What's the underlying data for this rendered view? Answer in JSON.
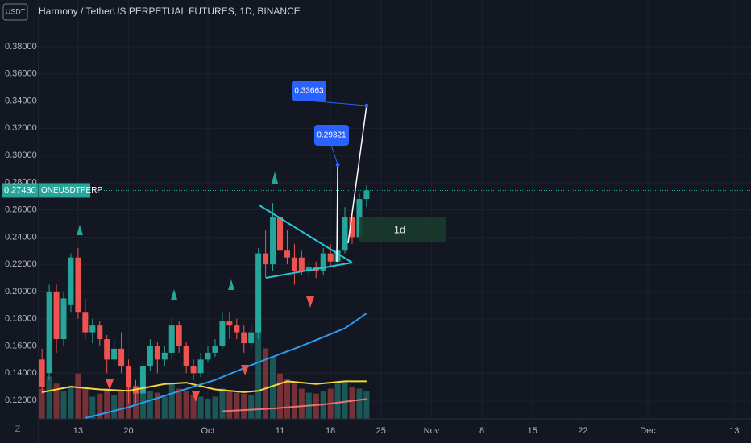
{
  "chart_data": {
    "type": "candlestick",
    "title": "Harmony / TetherUS PERPETUAL FUTURES, 1D, BINANCE",
    "currency": "USDT",
    "symbol": "ONEUSDTPERP",
    "interval_label": "1d",
    "up_color": "#26a69a",
    "down_color": "#ef5350",
    "x": [
      "Sep 8",
      "Sep 9",
      "Sep 10",
      "Sep 11",
      "Sep 12",
      "Sep 13",
      "Sep 14",
      "Sep 15",
      "Sep 16",
      "Sep 17",
      "Sep 18",
      "Sep 19",
      "Sep 20",
      "Sep 21",
      "Sep 22",
      "Sep 23",
      "Sep 24",
      "Sep 25",
      "Sep 26",
      "Sep 27",
      "Sep 28",
      "Sep 29",
      "Sep 30",
      "Oct 1",
      "Oct 2",
      "Oct 3",
      "Oct 4",
      "Oct 5",
      "Oct 6",
      "Oct 7",
      "Oct 8",
      "Oct 9",
      "Oct 10",
      "Oct 11",
      "Oct 12",
      "Oct 13",
      "Oct 14",
      "Oct 15",
      "Oct 16",
      "Oct 17",
      "Oct 18",
      "Oct 19",
      "Oct 20",
      "Oct 21",
      "Oct 22",
      "Oct 23"
    ],
    "open": [
      0.15,
      0.14,
      0.2,
      0.165,
      0.19,
      0.225,
      0.185,
      0.17,
      0.175,
      0.165,
      0.15,
      0.158,
      0.145,
      0.13,
      0.125,
      0.145,
      0.16,
      0.15,
      0.155,
      0.175,
      0.16,
      0.145,
      0.14,
      0.15,
      0.155,
      0.16,
      0.178,
      0.175,
      0.17,
      0.162,
      0.17,
      0.228,
      0.22,
      0.255,
      0.23,
      0.225,
      0.225,
      0.215,
      0.218,
      0.215,
      0.228,
      0.222,
      0.23,
      0.255,
      0.24,
      0.268
    ],
    "high": [
      0.158,
      0.205,
      0.205,
      0.2,
      0.228,
      0.232,
      0.195,
      0.18,
      0.178,
      0.168,
      0.165,
      0.17,
      0.15,
      0.135,
      0.15,
      0.165,
      0.163,
      0.16,
      0.18,
      0.178,
      0.163,
      0.15,
      0.155,
      0.16,
      0.165,
      0.185,
      0.185,
      0.18,
      0.175,
      0.175,
      0.232,
      0.245,
      0.265,
      0.26,
      0.245,
      0.235,
      0.23,
      0.222,
      0.222,
      0.232,
      0.235,
      0.235,
      0.262,
      0.26,
      0.272,
      0.278
    ],
    "low": [
      0.125,
      0.135,
      0.155,
      0.16,
      0.185,
      0.18,
      0.165,
      0.162,
      0.16,
      0.14,
      0.145,
      0.14,
      0.118,
      0.118,
      0.122,
      0.142,
      0.14,
      0.145,
      0.15,
      0.155,
      0.14,
      0.135,
      0.137,
      0.148,
      0.152,
      0.158,
      0.165,
      0.165,
      0.155,
      0.158,
      0.165,
      0.21,
      0.215,
      0.225,
      0.22,
      0.205,
      0.212,
      0.21,
      0.21,
      0.212,
      0.218,
      0.22,
      0.228,
      0.235,
      0.238,
      0.262
    ],
    "close": [
      0.13,
      0.2,
      0.165,
      0.195,
      0.225,
      0.185,
      0.17,
      0.175,
      0.165,
      0.15,
      0.158,
      0.145,
      0.13,
      0.125,
      0.145,
      0.16,
      0.15,
      0.155,
      0.175,
      0.16,
      0.145,
      0.14,
      0.15,
      0.155,
      0.16,
      0.178,
      0.175,
      0.17,
      0.162,
      0.17,
      0.228,
      0.22,
      0.255,
      0.23,
      0.225,
      0.215,
      0.215,
      0.218,
      0.215,
      0.228,
      0.222,
      0.23,
      0.255,
      0.24,
      0.268,
      0.2743
    ],
    "volume": [
      30,
      42,
      35,
      28,
      33,
      45,
      30,
      22,
      25,
      30,
      24,
      28,
      40,
      33,
      30,
      28,
      26,
      22,
      35,
      30,
      28,
      24,
      22,
      20,
      22,
      30,
      28,
      26,
      25,
      24,
      100,
      70,
      62,
      45,
      40,
      35,
      30,
      26,
      25,
      28,
      30,
      35,
      38,
      32,
      30,
      28
    ],
    "volume_lim": [
      0,
      100
    ],
    "ylim": [
      0.1064,
      0.4143
    ],
    "yticks": [
      {
        "value": 0.12,
        "label": "0.12000"
      },
      {
        "value": 0.14,
        "label": "0.14000"
      },
      {
        "value": 0.16,
        "label": "0.16000"
      },
      {
        "value": 0.18,
        "label": "0.18000"
      },
      {
        "value": 0.2,
        "label": "0.20000"
      },
      {
        "value": 0.22,
        "label": "0.22000"
      },
      {
        "value": 0.24,
        "label": "0.24000"
      },
      {
        "value": 0.26,
        "label": "0.26000"
      },
      {
        "value": 0.28,
        "label": "0.28000"
      },
      {
        "value": 0.3,
        "label": "0.30000"
      },
      {
        "value": 0.32,
        "label": "0.32000"
      },
      {
        "value": 0.34,
        "label": "0.34000"
      },
      {
        "value": 0.36,
        "label": "0.36000"
      },
      {
        "value": 0.38,
        "label": "0.38000"
      }
    ],
    "xticks": [
      {
        "value": "Sep 13",
        "label": "13"
      },
      {
        "value": "Sep 20",
        "label": "20"
      },
      {
        "value": "Oct 1",
        "label": "Oct"
      },
      {
        "value": "Oct 11",
        "label": "11"
      },
      {
        "value": "Oct 18",
        "label": "18"
      },
      {
        "value": "Oct 25",
        "label": "25"
      },
      {
        "value": "Nov 1",
        "label": "Nov"
      },
      {
        "value": "Nov 8",
        "label": "8"
      },
      {
        "value": "Nov 15",
        "label": "15"
      },
      {
        "value": "Nov 22",
        "label": "22"
      },
      {
        "value": "Dec 1",
        "label": "Dec"
      },
      {
        "value": "Dec 13",
        "label": "13"
      }
    ],
    "last_price": {
      "value": 0.2743,
      "label": "0.27430"
    },
    "lines": [
      {
        "color": "#f5d63d",
        "x": [
          "Sep 8",
          "Sep 12",
          "Sep 16",
          "Sep 20",
          "Sep 25",
          "Sep 28",
          "Oct 2",
          "Oct 6",
          "Oct 8",
          "Oct 12",
          "Oct 16",
          "Oct 20",
          "Oct 23"
        ],
        "values": [
          0.126,
          0.13,
          0.128,
          0.127,
          0.132,
          0.133,
          0.128,
          0.126,
          0.127,
          0.134,
          0.132,
          0.134,
          0.134
        ]
      },
      {
        "color": "#2a9df4",
        "x": [
          "Sep 14",
          "Sep 20",
          "Sep 26",
          "Oct 2",
          "Oct 8",
          "Oct 14",
          "Oct 20",
          "Oct 23"
        ],
        "values": [
          0.107,
          0.115,
          0.125,
          0.135,
          0.148,
          0.16,
          0.173,
          0.184
        ]
      },
      {
        "color": "#e57373",
        "x": [
          "Oct 3",
          "Oct 10",
          "Oct 17",
          "Oct 23"
        ],
        "values": [
          0.112,
          0.114,
          0.117,
          0.121
        ]
      }
    ],
    "annotations": [
      {
        "x": "Oct 19",
        "value": 0.29321
      },
      {
        "x": "Oct 23",
        "value": 0.33663
      }
    ],
    "grid": true
  }
}
